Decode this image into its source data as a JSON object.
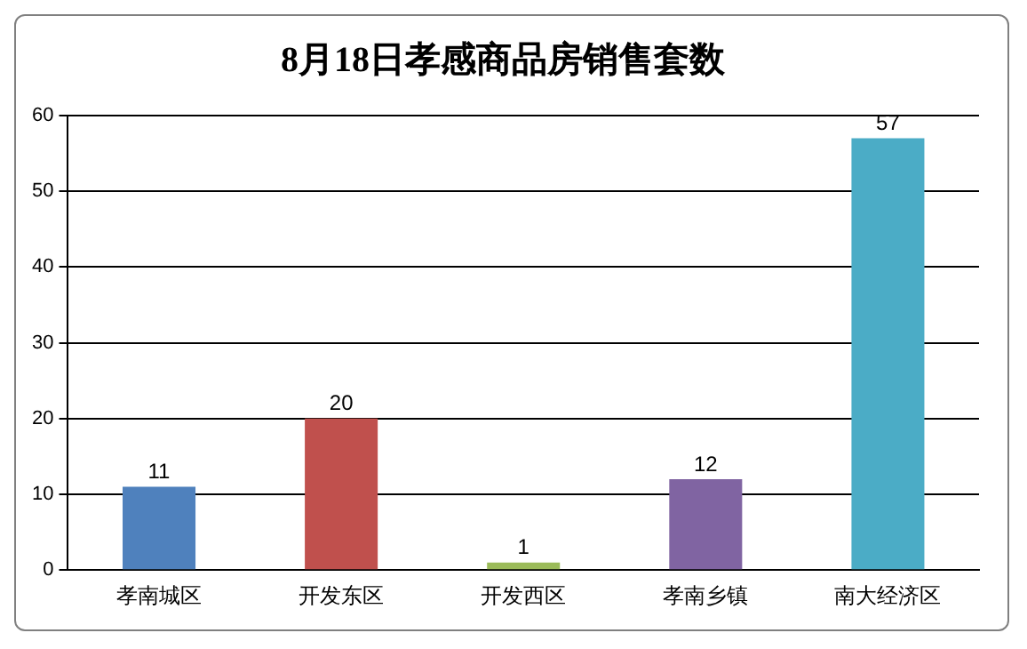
{
  "chart_data": {
    "type": "bar",
    "title": "8月18日孝感商品房销售套数",
    "categories": [
      "孝南城区",
      "开发东区",
      "开发西区",
      "孝南乡镇",
      "南大经济区"
    ],
    "values": [
      11,
      20,
      1,
      12,
      57
    ],
    "colors": [
      "#4f81bd",
      "#c0504d",
      "#9bbb59",
      "#8064a2",
      "#4bacc6"
    ],
    "ylim": [
      0,
      60
    ],
    "yticks": [
      0,
      10,
      20,
      30,
      40,
      50,
      60
    ],
    "grid": "y",
    "legend": false,
    "data_labels": true
  }
}
